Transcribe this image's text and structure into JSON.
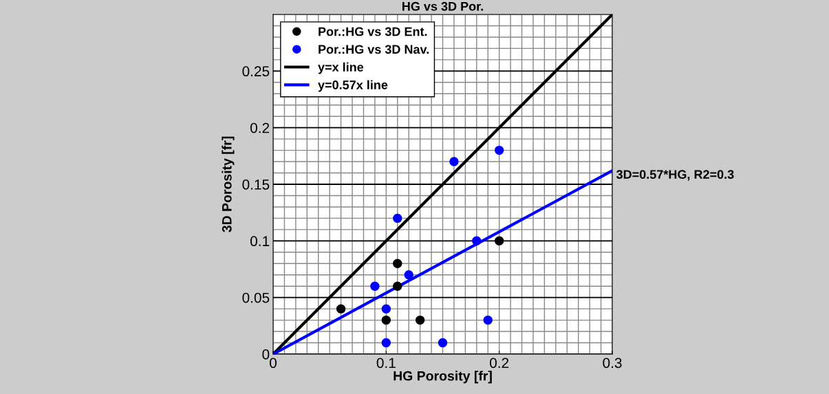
{
  "chart_data": {
    "type": "scatter",
    "title": "HG vs 3D Por.",
    "xlabel": "HG Porosity [fr]",
    "ylabel": "3D Porosity [fr]",
    "series": [
      {
        "name": "Por.:HG vs 3D Ent.",
        "color": "#000000",
        "marker": "circle",
        "x": [
          0.06,
          0.1,
          0.11,
          0.11,
          0.13,
          0.2
        ],
        "values": [
          0.04,
          0.03,
          0.08,
          0.06,
          0.03,
          0.1
        ]
      },
      {
        "name": "Por.:HG vs 3D Nav.",
        "color": "#0000ff",
        "marker": "circle",
        "x": [
          0.09,
          0.1,
          0.1,
          0.11,
          0.12,
          0.15,
          0.16,
          0.18,
          0.19,
          0.2
        ],
        "values": [
          0.06,
          0.04,
          0.01,
          0.12,
          0.07,
          0.01,
          0.17,
          0.1,
          0.03,
          0.18
        ]
      },
      {
        "name": "y=x line",
        "type": "line",
        "color": "#000000",
        "x": [
          0,
          0.3
        ],
        "values": [
          0,
          0.3
        ]
      },
      {
        "name": "y=0.57x line",
        "type": "line",
        "color": "#0000ff",
        "x": [
          0,
          0.3
        ],
        "values": [
          0,
          0.162
        ]
      }
    ],
    "annotations": [
      {
        "text": "3D=0.57*HG, R2=0.3",
        "x": 0.3,
        "y": 0.162
      }
    ],
    "xlim": [
      0,
      0.3
    ],
    "ylim": [
      0,
      0.3
    ],
    "xticks": [
      0,
      0.1,
      0.2,
      0.3
    ],
    "yticks": [
      0,
      0.05,
      0.1,
      0.15,
      0.2,
      0.25
    ],
    "grid": true,
    "legend": "top left"
  }
}
